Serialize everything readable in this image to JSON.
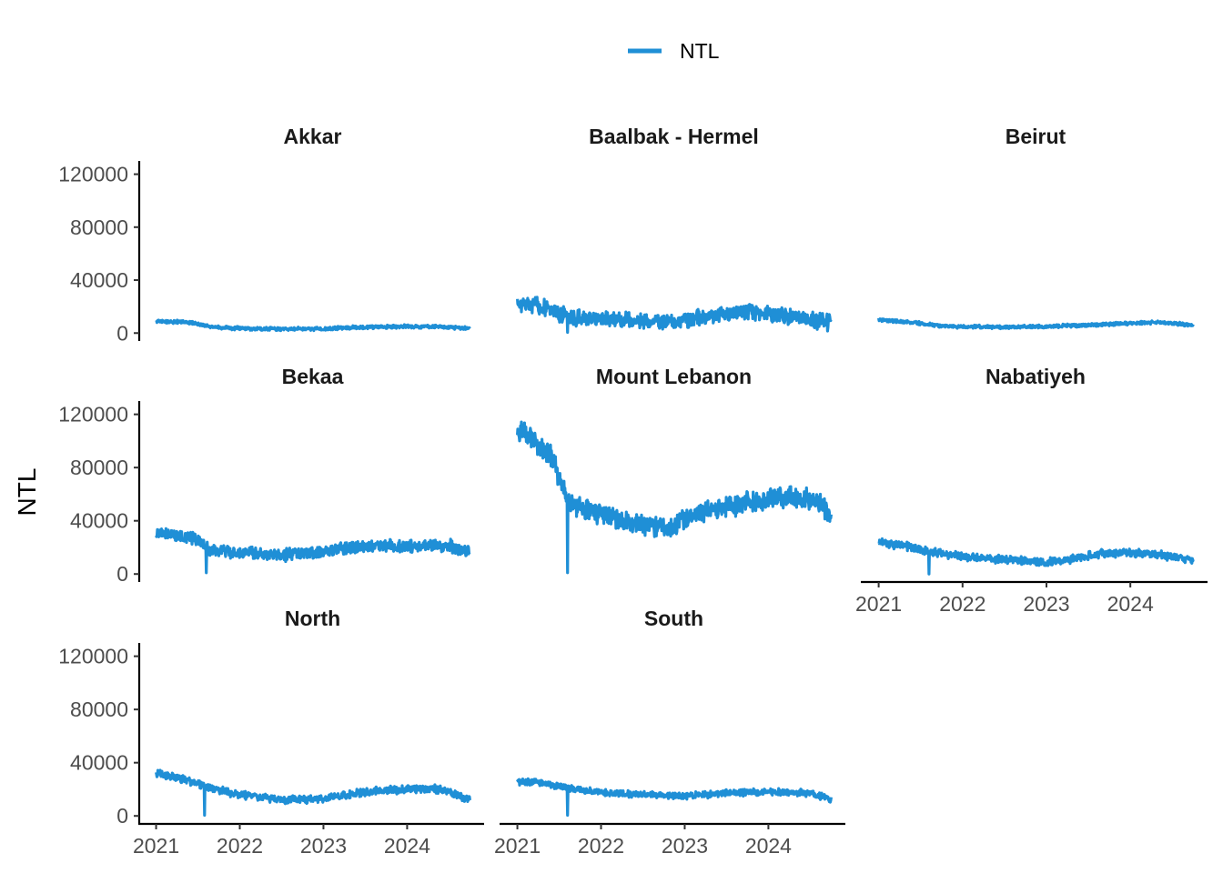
{
  "chart_data": {
    "type": "line",
    "legend": {
      "position": "top",
      "entries": [
        "NTL"
      ]
    },
    "ylabel": "NTL",
    "xlabel": "",
    "ylim": [
      0,
      130000
    ],
    "xlim": [
      2021.0,
      2024.75
    ],
    "y_ticks": [
      "0",
      "40000",
      "80000",
      "120000"
    ],
    "x_ticks": [
      "2021",
      "2022",
      "2023",
      "2024"
    ],
    "grid": false,
    "colors": {
      "series": "#1f8fd6",
      "axis": "#000000"
    },
    "facets": [
      {
        "name": "Akkar",
        "anchors": [
          [
            2021.0,
            9000
          ],
          [
            2021.4,
            8000
          ],
          [
            2021.7,
            4500
          ],
          [
            2022.0,
            3500
          ],
          [
            2022.5,
            3000
          ],
          [
            2023.0,
            3200
          ],
          [
            2023.5,
            4500
          ],
          [
            2024.0,
            5000
          ],
          [
            2024.4,
            4800
          ],
          [
            2024.72,
            3500
          ]
        ],
        "noise": 1500,
        "dips": []
      },
      {
        "name": "Baalbak - Hermel",
        "anchors": [
          [
            2021.0,
            22000
          ],
          [
            2021.3,
            20000
          ],
          [
            2021.6,
            12000
          ],
          [
            2022.0,
            11000
          ],
          [
            2022.5,
            9000
          ],
          [
            2023.0,
            10000
          ],
          [
            2023.5,
            14000
          ],
          [
            2023.8,
            16000
          ],
          [
            2024.3,
            12000
          ],
          [
            2024.72,
            8000
          ]
        ],
        "noise": 7000,
        "dips": [
          [
            2021.6,
            500
          ]
        ]
      },
      {
        "name": "Beirut",
        "anchors": [
          [
            2021.0,
            10000
          ],
          [
            2021.4,
            8000
          ],
          [
            2021.8,
            5000
          ],
          [
            2022.5,
            4500
          ],
          [
            2023.0,
            5000
          ],
          [
            2023.5,
            6000
          ],
          [
            2024.0,
            7500
          ],
          [
            2024.4,
            8000
          ],
          [
            2024.72,
            6000
          ]
        ],
        "noise": 1500,
        "dips": []
      },
      {
        "name": "Bekaa",
        "anchors": [
          [
            2021.0,
            31000
          ],
          [
            2021.3,
            29000
          ],
          [
            2021.5,
            26000
          ],
          [
            2021.65,
            18000
          ],
          [
            2022.0,
            16000
          ],
          [
            2022.5,
            14000
          ],
          [
            2023.0,
            17000
          ],
          [
            2023.5,
            21000
          ],
          [
            2024.0,
            21000
          ],
          [
            2024.5,
            22000
          ],
          [
            2024.72,
            16000
          ]
        ],
        "noise": 5500,
        "dips": [
          [
            2021.6,
            1000
          ]
        ]
      },
      {
        "name": "Mount Lebanon",
        "anchors": [
          [
            2021.0,
            110000
          ],
          [
            2021.2,
            100000
          ],
          [
            2021.4,
            90000
          ],
          [
            2021.6,
            55000
          ],
          [
            2021.8,
            48000
          ],
          [
            2022.0,
            45000
          ],
          [
            2022.3,
            40000
          ],
          [
            2022.6,
            35000
          ],
          [
            2022.8,
            33000
          ],
          [
            2023.0,
            42000
          ],
          [
            2023.3,
            48000
          ],
          [
            2023.6,
            52000
          ],
          [
            2024.0,
            57000
          ],
          [
            2024.3,
            58000
          ],
          [
            2024.6,
            55000
          ],
          [
            2024.72,
            45000
          ]
        ],
        "noise": 9000,
        "dips": [
          [
            2021.6,
            1000
          ]
        ]
      },
      {
        "name": "Nabatiyeh",
        "anchors": [
          [
            2021.0,
            24000
          ],
          [
            2021.3,
            21000
          ],
          [
            2021.7,
            16000
          ],
          [
            2022.0,
            13000
          ],
          [
            2022.5,
            11000
          ],
          [
            2023.0,
            9000
          ],
          [
            2023.3,
            11000
          ],
          [
            2023.6,
            15000
          ],
          [
            2024.0,
            16000
          ],
          [
            2024.4,
            14000
          ],
          [
            2024.72,
            10000
          ]
        ],
        "noise": 3500,
        "dips": [
          [
            2021.6,
            0
          ]
        ]
      },
      {
        "name": "North",
        "anchors": [
          [
            2021.0,
            32000
          ],
          [
            2021.3,
            28000
          ],
          [
            2021.7,
            20000
          ],
          [
            2022.0,
            16000
          ],
          [
            2022.5,
            12000
          ],
          [
            2023.0,
            13000
          ],
          [
            2023.3,
            16000
          ],
          [
            2023.6,
            19000
          ],
          [
            2024.0,
            20000
          ],
          [
            2024.4,
            20000
          ],
          [
            2024.72,
            13000
          ]
        ],
        "noise": 3500,
        "dips": [
          [
            2021.58,
            500
          ]
        ]
      },
      {
        "name": "South",
        "anchors": [
          [
            2021.0,
            26000
          ],
          [
            2021.3,
            25000
          ],
          [
            2021.7,
            20000
          ],
          [
            2022.0,
            18000
          ],
          [
            2022.5,
            16000
          ],
          [
            2023.0,
            15000
          ],
          [
            2023.5,
            17000
          ],
          [
            2024.0,
            18000
          ],
          [
            2024.5,
            17000
          ],
          [
            2024.72,
            13000
          ]
        ],
        "noise": 3000,
        "dips": [
          [
            2021.6,
            500
          ]
        ]
      }
    ]
  }
}
